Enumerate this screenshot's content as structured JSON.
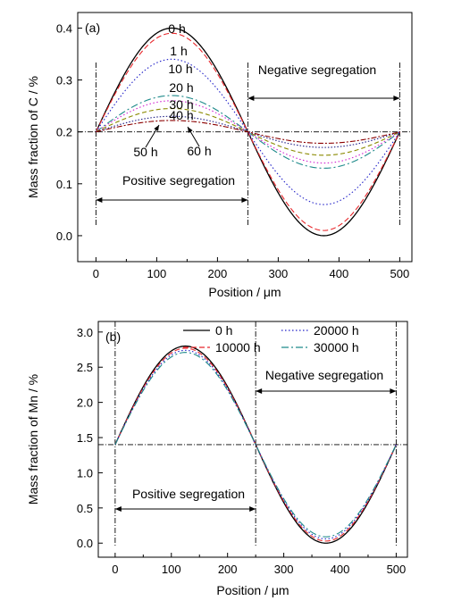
{
  "chart_data": [
    {
      "type": "line",
      "panel_label": "(a)",
      "xlabel": "Position / μm",
      "ylabel": "Mass fraction of C / %",
      "xlim": [
        -30,
        520
      ],
      "ylim": [
        -0.05,
        0.43
      ],
      "xticks": [
        0,
        100,
        200,
        300,
        400,
        500
      ],
      "yticks": [
        0.0,
        0.1,
        0.2,
        0.3,
        0.4
      ],
      "ytick_labels": [
        "0.0",
        "0.1",
        "0.2",
        "0.3",
        "0.4"
      ],
      "mean_line": 0.2,
      "boundaries": [
        0,
        250,
        500
      ],
      "annotations": {
        "positive": "Positive segregation",
        "negative": "Negative segregation"
      },
      "series": [
        {
          "name": "0 h",
          "amplitude": 0.2,
          "color": "#000000",
          "dash": ""
        },
        {
          "name": "1 h",
          "amplitude": 0.19,
          "color": "#e8262a",
          "dash": "6,3"
        },
        {
          "name": "10 h",
          "amplitude": 0.14,
          "color": "#2020c8",
          "dash": "1.5,2.5"
        },
        {
          "name": "20 h",
          "amplitude": 0.07,
          "color": "#1e8a8a",
          "dash": "8,3,2,3"
        },
        {
          "name": "30 h",
          "amplitude": 0.06,
          "color": "#d020d0",
          "dash": "1.5,2.5"
        },
        {
          "name": "40 h",
          "amplitude": 0.045,
          "color": "#8a8a00",
          "dash": "5,3"
        },
        {
          "name": "50 h",
          "amplitude": 0.03,
          "color": "#222288",
          "dash": "1.5,2"
        },
        {
          "name": "60 h",
          "amplitude": 0.022,
          "color": "#8b0000",
          "dash": "6,2,2,2"
        }
      ],
      "curve_labels": [
        {
          "text": "0 h"
        },
        {
          "text": "1 h"
        },
        {
          "text": "10 h"
        },
        {
          "text": "20 h"
        },
        {
          "text": "30 h"
        },
        {
          "text": "40 h"
        },
        {
          "text": "50 h"
        },
        {
          "text": "60 h"
        }
      ]
    },
    {
      "type": "line",
      "panel_label": "(b)",
      "xlabel": "Position / μm",
      "ylabel": "Mass fraction of Mn / %",
      "xlim": [
        -30,
        520
      ],
      "ylim": [
        -0.2,
        3.15
      ],
      "xticks": [
        0,
        100,
        200,
        300,
        400,
        500
      ],
      "yticks": [
        0.0,
        0.5,
        1.0,
        1.5,
        2.0,
        2.5,
        3.0
      ],
      "ytick_labels": [
        "0.0",
        "0.5",
        "1.0",
        "1.5",
        "2.0",
        "2.5",
        "3.0"
      ],
      "mean_line": 1.4,
      "boundaries": [
        0,
        250,
        500
      ],
      "annotations": {
        "positive": "Positive segregation",
        "negative": "Negative segregation"
      },
      "series": [
        {
          "name": "0 h",
          "amplitude": 1.4,
          "color": "#000000",
          "dash": ""
        },
        {
          "name": "10000 h",
          "amplitude": 1.37,
          "color": "#e8262a",
          "dash": "6,3"
        },
        {
          "name": "20000 h",
          "amplitude": 1.34,
          "color": "#2020c8",
          "dash": "1.5,2.5"
        },
        {
          "name": "30000 h",
          "amplitude": 1.31,
          "color": "#1e8a8a",
          "dash": "8,3,2,3"
        }
      ]
    }
  ]
}
